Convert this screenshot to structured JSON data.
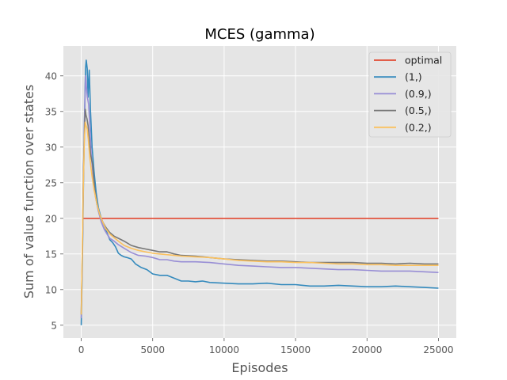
{
  "chart_data": {
    "type": "line",
    "title": "MCES (gamma)",
    "xlabel": "Episodes",
    "ylabel": "Sum of value function over states",
    "xlim": [
      -1250,
      26250
    ],
    "ylim": [
      3.2,
      44.2
    ],
    "xticks": [
      0,
      5000,
      10000,
      15000,
      20000,
      25000
    ],
    "yticks": [
      5,
      10,
      15,
      20,
      25,
      30,
      35,
      40
    ],
    "grid": true,
    "legend_position": "top-right",
    "series": [
      {
        "name": "optimal",
        "color": "#E24A33",
        "points": [
          [
            100,
            20
          ],
          [
            25000,
            20
          ]
        ]
      },
      {
        "name": "(1,)",
        "color": "#348ABD",
        "points": [
          [
            0,
            5
          ],
          [
            80,
            14
          ],
          [
            150,
            24
          ],
          [
            220,
            33
          ],
          [
            300,
            41
          ],
          [
            350,
            42.2
          ],
          [
            420,
            41
          ],
          [
            480,
            37
          ],
          [
            560,
            40.8
          ],
          [
            650,
            35
          ],
          [
            760,
            30
          ],
          [
            900,
            26.5
          ],
          [
            1050,
            23.5
          ],
          [
            1200,
            21.5
          ],
          [
            1400,
            20
          ],
          [
            1600,
            19
          ],
          [
            1800,
            18
          ],
          [
            2000,
            17
          ],
          [
            2200,
            16.6
          ],
          [
            2400,
            16
          ],
          [
            2600,
            15.1
          ],
          [
            2800,
            14.8
          ],
          [
            3000,
            14.6
          ],
          [
            3200,
            14.5
          ],
          [
            3500,
            14.3
          ],
          [
            3800,
            13.6
          ],
          [
            4200,
            13.1
          ],
          [
            4600,
            12.8
          ],
          [
            5000,
            12.2
          ],
          [
            5500,
            12
          ],
          [
            6000,
            12
          ],
          [
            6500,
            11.6
          ],
          [
            7000,
            11.2
          ],
          [
            7500,
            11.2
          ],
          [
            8000,
            11.1
          ],
          [
            8500,
            11.2
          ],
          [
            9000,
            11
          ],
          [
            10000,
            10.9
          ],
          [
            11000,
            10.8
          ],
          [
            12000,
            10.8
          ],
          [
            13000,
            10.9
          ],
          [
            14000,
            10.7
          ],
          [
            15000,
            10.7
          ],
          [
            16000,
            10.5
          ],
          [
            17000,
            10.5
          ],
          [
            18000,
            10.6
          ],
          [
            19000,
            10.5
          ],
          [
            20000,
            10.4
          ],
          [
            21000,
            10.4
          ],
          [
            22000,
            10.5
          ],
          [
            23000,
            10.4
          ],
          [
            24000,
            10.3
          ],
          [
            25000,
            10.2
          ]
        ]
      },
      {
        "name": "(0.9,)",
        "color": "#988ED5",
        "points": [
          [
            0,
            6
          ],
          [
            80,
            15
          ],
          [
            150,
            25
          ],
          [
            220,
            33
          ],
          [
            300,
            40
          ],
          [
            360,
            38.5
          ],
          [
            430,
            37
          ],
          [
            520,
            36
          ],
          [
            600,
            33
          ],
          [
            700,
            29
          ],
          [
            850,
            25.5
          ],
          [
            1000,
            23
          ],
          [
            1200,
            21
          ],
          [
            1400,
            19.5
          ],
          [
            1600,
            18.5
          ],
          [
            1800,
            17.8
          ],
          [
            2000,
            17.2
          ],
          [
            2300,
            16.8
          ],
          [
            2600,
            16.3
          ],
          [
            3000,
            15.8
          ],
          [
            3500,
            15.2
          ],
          [
            4000,
            14.8
          ],
          [
            4500,
            14.7
          ],
          [
            5000,
            14.5
          ],
          [
            5500,
            14.2
          ],
          [
            6000,
            14.2
          ],
          [
            6500,
            14
          ],
          [
            7000,
            13.9
          ],
          [
            8000,
            13.9
          ],
          [
            9000,
            13.8
          ],
          [
            10000,
            13.6
          ],
          [
            11000,
            13.4
          ],
          [
            12000,
            13.3
          ],
          [
            13000,
            13.2
          ],
          [
            14000,
            13.1
          ],
          [
            15000,
            13.1
          ],
          [
            16000,
            13
          ],
          [
            17000,
            12.9
          ],
          [
            18000,
            12.8
          ],
          [
            19000,
            12.8
          ],
          [
            20000,
            12.7
          ],
          [
            21000,
            12.6
          ],
          [
            22000,
            12.6
          ],
          [
            23000,
            12.6
          ],
          [
            24000,
            12.5
          ],
          [
            25000,
            12.4
          ]
        ]
      },
      {
        "name": "(0.5,)",
        "color": "#777777",
        "points": [
          [
            0,
            6.5
          ],
          [
            80,
            16
          ],
          [
            150,
            26
          ],
          [
            220,
            32
          ],
          [
            280,
            35.3
          ],
          [
            330,
            34.5
          ],
          [
            400,
            34
          ],
          [
            480,
            33
          ],
          [
            560,
            31
          ],
          [
            650,
            29
          ],
          [
            800,
            27.5
          ],
          [
            950,
            24
          ],
          [
            1100,
            22
          ],
          [
            1300,
            20.5
          ],
          [
            1500,
            19.5
          ],
          [
            1700,
            18.8
          ],
          [
            2000,
            18
          ],
          [
            2300,
            17.5
          ],
          [
            2600,
            17.2
          ],
          [
            3000,
            16.8
          ],
          [
            3500,
            16.2
          ],
          [
            4000,
            15.9
          ],
          [
            4500,
            15.7
          ],
          [
            5000,
            15.5
          ],
          [
            5500,
            15.3
          ],
          [
            6000,
            15.3
          ],
          [
            6500,
            15
          ],
          [
            7000,
            14.8
          ],
          [
            8000,
            14.7
          ],
          [
            9000,
            14.5
          ],
          [
            10000,
            14.3
          ],
          [
            11000,
            14.2
          ],
          [
            12000,
            14.1
          ],
          [
            13000,
            14
          ],
          [
            14000,
            14
          ],
          [
            15000,
            13.9
          ],
          [
            16000,
            13.8
          ],
          [
            17000,
            13.8
          ],
          [
            18000,
            13.8
          ],
          [
            19000,
            13.8
          ],
          [
            20000,
            13.7
          ],
          [
            21000,
            13.7
          ],
          [
            22000,
            13.6
          ],
          [
            23000,
            13.7
          ],
          [
            24000,
            13.6
          ],
          [
            25000,
            13.6
          ]
        ]
      },
      {
        "name": "(0.2,)",
        "color": "#FBC15E",
        "points": [
          [
            0,
            6.5
          ],
          [
            80,
            16
          ],
          [
            150,
            25
          ],
          [
            220,
            31
          ],
          [
            280,
            33.5
          ],
          [
            340,
            33
          ],
          [
            420,
            32.5
          ],
          [
            500,
            31
          ],
          [
            600,
            28.5
          ],
          [
            750,
            26
          ],
          [
            900,
            24
          ],
          [
            1100,
            22
          ],
          [
            1300,
            20.5
          ],
          [
            1500,
            19.5
          ],
          [
            1700,
            18.6
          ],
          [
            2000,
            17.8
          ],
          [
            2300,
            17.3
          ],
          [
            2600,
            16.8
          ],
          [
            3000,
            16.2
          ],
          [
            3500,
            15.8
          ],
          [
            4000,
            15.5
          ],
          [
            4500,
            15.3
          ],
          [
            5000,
            15.1
          ],
          [
            5500,
            15
          ],
          [
            6000,
            14.9
          ],
          [
            6500,
            14.8
          ],
          [
            7000,
            14.7
          ],
          [
            8000,
            14.6
          ],
          [
            9000,
            14.5
          ],
          [
            10000,
            14.3
          ],
          [
            11000,
            14.1
          ],
          [
            12000,
            14
          ],
          [
            13000,
            13.9
          ],
          [
            14000,
            13.9
          ],
          [
            15000,
            13.8
          ],
          [
            16000,
            13.8
          ],
          [
            17000,
            13.7
          ],
          [
            18000,
            13.6
          ],
          [
            19000,
            13.6
          ],
          [
            20000,
            13.5
          ],
          [
            21000,
            13.5
          ],
          [
            22000,
            13.4
          ],
          [
            23000,
            13.4
          ],
          [
            24000,
            13.4
          ],
          [
            25000,
            13.4
          ]
        ]
      }
    ]
  }
}
